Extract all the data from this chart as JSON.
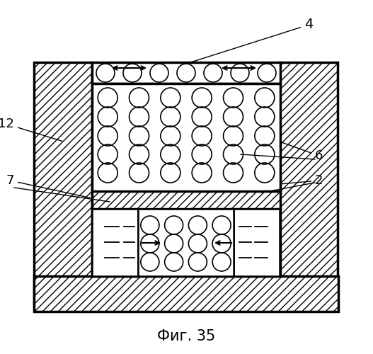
{
  "fig_width": 5.27,
  "fig_height": 5.0,
  "dpi": 100,
  "title": "Фиг. 35",
  "title_fontsize": 15,
  "bg_color": "#ffffff"
}
